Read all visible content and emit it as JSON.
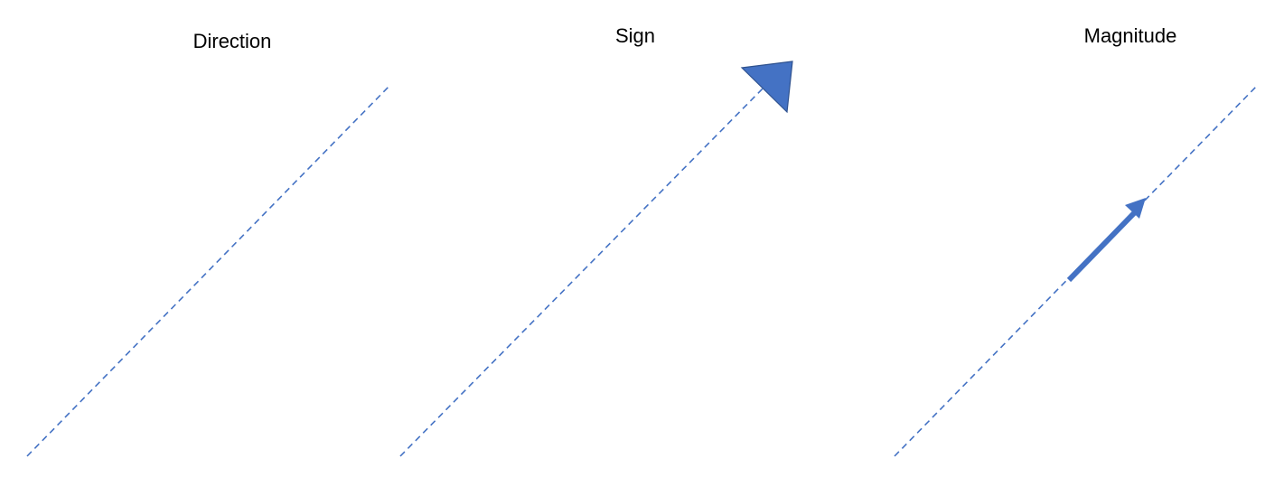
{
  "panels": [
    {
      "label": "Direction"
    },
    {
      "label": "Sign"
    },
    {
      "label": "Magnitude"
    }
  ],
  "colors": {
    "line": "#4472c4",
    "arrow_fill": "#4472c4",
    "arrow_stroke": "#2f528f",
    "text": "#000000"
  }
}
